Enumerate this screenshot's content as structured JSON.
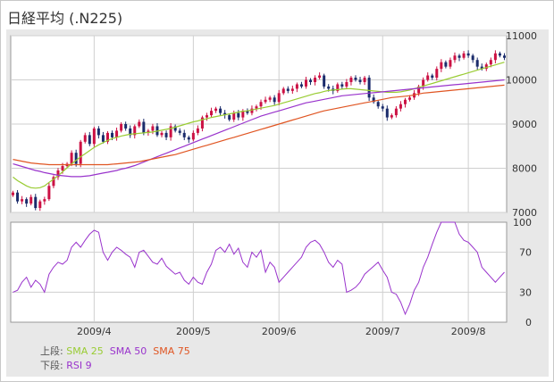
{
  "title": "日経平均 (.N225)",
  "colors": {
    "up": "#cc1144",
    "down": "#1a2b6b",
    "sma25": "#99cc33",
    "sma50": "#9933cc",
    "sma75": "#e05522",
    "rsi": "#9933cc"
  },
  "legend": {
    "upper_label": "上段:",
    "lower_label": "下段:",
    "sma25": "SMA 25",
    "sma50": "SMA 50",
    "sma75": "SMA 75",
    "rsi9": "RSI 9"
  },
  "chart_data": [
    {
      "type": "candlestick",
      "title": "日経平均 (.N225)",
      "x_ticks": [
        "2009/4",
        "2009/5",
        "2009/6",
        "2009/7",
        "2009/8"
      ],
      "y_ticks": [
        7000,
        8000,
        9000,
        10000,
        11000
      ],
      "ylim": [
        7000,
        11000
      ],
      "closes": [
        7450,
        7250,
        7300,
        7200,
        7350,
        7100,
        7250,
        7300,
        7600,
        7800,
        7950,
        8050,
        8100,
        8350,
        8100,
        8600,
        8750,
        8550,
        8900,
        8750,
        8600,
        8800,
        8700,
        8850,
        9000,
        8900,
        8750,
        8950,
        9050,
        8800,
        8850,
        8950,
        8750,
        8800,
        8700,
        8950,
        8850,
        8800,
        8700,
        8650,
        8800,
        8900,
        9150,
        9200,
        9300,
        9350,
        9250,
        9200,
        9100,
        9250,
        9150,
        9300,
        9250,
        9350,
        9400,
        9500,
        9550,
        9600,
        9500,
        9700,
        9800,
        9750,
        9800,
        9900,
        9850,
        10000,
        9950,
        10050,
        10100,
        9850,
        9800,
        9750,
        9900,
        9850,
        9950,
        10050,
        10000,
        9950,
        10050,
        9600,
        9500,
        9400,
        9350,
        9150,
        9200,
        9350,
        9450,
        9550,
        9600,
        9700,
        9850,
        10000,
        10100,
        10050,
        10250,
        10400,
        10300,
        10450,
        10550,
        10500,
        10600,
        10550,
        10450,
        10300,
        10250,
        10350,
        10450,
        10600,
        10550,
        10500
      ],
      "series": [
        {
          "name": "SMA 25",
          "values": [
            7800,
            7720,
            7660,
            7600,
            7560,
            7550,
            7560,
            7600,
            7680,
            7750,
            7830,
            7920,
            8010,
            8100,
            8180,
            8260,
            8330,
            8400,
            8470,
            8530,
            8580,
            8630,
            8670,
            8700,
            8730,
            8750,
            8770,
            8780,
            8790,
            8800,
            8810,
            8820,
            8840,
            8860,
            8880,
            8900,
            8930,
            8960,
            8990,
            9020,
            9050,
            9070,
            9100,
            9120,
            9150,
            9170,
            9190,
            9210,
            9230,
            9250,
            9270,
            9290,
            9300,
            9320,
            9340,
            9360,
            9380,
            9400,
            9420,
            9450,
            9480,
            9510,
            9540,
            9570,
            9600,
            9630,
            9660,
            9690,
            9710,
            9740,
            9760,
            9770,
            9780,
            9790,
            9800,
            9800,
            9790,
            9780,
            9770,
            9760,
            9750,
            9740,
            9730,
            9720,
            9720,
            9720,
            9730,
            9750,
            9770,
            9800,
            9830,
            9860,
            9890,
            9920,
            9950,
            9980,
            10010,
            10040,
            10070,
            10100,
            10130,
            10160,
            10190,
            10220,
            10250,
            10280,
            10310,
            10340,
            10370,
            10400
          ]
        },
        {
          "name": "SMA 50",
          "values": [
            8100,
            8070,
            8040,
            8010,
            7980,
            7950,
            7930,
            7900,
            7880,
            7860,
            7840,
            7830,
            7820,
            7810,
            7810,
            7810,
            7820,
            7830,
            7850,
            7870,
            7890,
            7910,
            7930,
            7950,
            7980,
            8000,
            8030,
            8060,
            8100,
            8140,
            8180,
            8220,
            8260,
            8300,
            8340,
            8380,
            8420,
            8460,
            8500,
            8540,
            8580,
            8620,
            8660,
            8700,
            8740,
            8780,
            8820,
            8860,
            8900,
            8940,
            8980,
            9020,
            9060,
            9100,
            9140,
            9180,
            9210,
            9240,
            9270,
            9300,
            9330,
            9360,
            9390,
            9420,
            9450,
            9480,
            9500,
            9520,
            9540,
            9560,
            9580,
            9600,
            9620,
            9640,
            9650,
            9660,
            9670,
            9680,
            9690,
            9700,
            9710,
            9720,
            9730,
            9740,
            9750,
            9760,
            9770,
            9780,
            9790,
            9800,
            9810,
            9820,
            9830,
            9840,
            9850,
            9860,
            9870,
            9880,
            9890,
            9900,
            9910,
            9920,
            9930,
            9940,
            9950,
            9960,
            9970,
            9980,
            9990,
            10000
          ]
        },
        {
          "name": "SMA 75",
          "values": [
            8200,
            8180,
            8160,
            8140,
            8120,
            8110,
            8100,
            8090,
            8080,
            8080,
            8080,
            8080,
            8080,
            8080,
            8080,
            8080,
            8080,
            8080,
            8080,
            8080,
            8080,
            8080,
            8090,
            8100,
            8110,
            8120,
            8130,
            8140,
            8150,
            8170,
            8190,
            8210,
            8230,
            8250,
            8270,
            8290,
            8310,
            8340,
            8370,
            8400,
            8430,
            8460,
            8490,
            8520,
            8550,
            8580,
            8610,
            8640,
            8670,
            8700,
            8730,
            8760,
            8790,
            8820,
            8850,
            8880,
            8910,
            8940,
            8970,
            9000,
            9030,
            9060,
            9090,
            9120,
            9150,
            9180,
            9210,
            9240,
            9270,
            9300,
            9320,
            9340,
            9360,
            9380,
            9400,
            9420,
            9440,
            9460,
            9480,
            9500,
            9520,
            9540,
            9560,
            9580,
            9600,
            9610,
            9620,
            9630,
            9640,
            9660,
            9680,
            9700,
            9710,
            9720,
            9730,
            9740,
            9750,
            9760,
            9770,
            9780,
            9790,
            9800,
            9810,
            9820,
            9830,
            9840,
            9850,
            9860,
            9870,
            9880
          ]
        }
      ]
    },
    {
      "type": "line",
      "name": "RSI 9",
      "y_ticks": [
        0,
        30,
        70,
        100
      ],
      "ylim": [
        0,
        100
      ],
      "values": [
        30,
        32,
        40,
        45,
        35,
        42,
        38,
        30,
        48,
        55,
        60,
        58,
        62,
        75,
        80,
        75,
        82,
        88,
        92,
        90,
        70,
        62,
        70,
        75,
        72,
        68,
        65,
        55,
        70,
        72,
        66,
        60,
        58,
        64,
        56,
        52,
        48,
        50,
        42,
        38,
        45,
        40,
        38,
        50,
        58,
        72,
        75,
        70,
        78,
        68,
        74,
        60,
        55,
        70,
        65,
        72,
        50,
        60,
        55,
        40,
        45,
        50,
        55,
        60,
        65,
        75,
        80,
        82,
        78,
        70,
        60,
        55,
        62,
        58,
        30,
        32,
        35,
        40,
        48,
        52,
        56,
        60,
        52,
        45,
        30,
        28,
        20,
        8,
        18,
        32,
        40,
        55,
        65,
        78,
        90,
        100,
        100,
        100,
        100,
        88,
        82,
        80,
        75,
        70,
        55,
        50,
        45,
        40,
        45,
        50
      ]
    }
  ]
}
